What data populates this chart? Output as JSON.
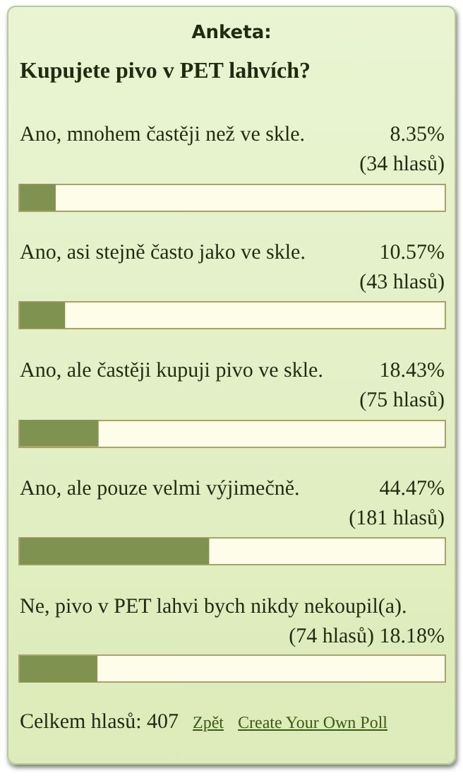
{
  "chart_data": {
    "type": "bar",
    "orientation": "horizontal",
    "title": "Anketa:",
    "subtitle": "Kupujete pivo v PET lahvích?",
    "categories": [
      "Ano, mnohem častěji než ve skle.",
      "Ano, asi stejně často jako ve skle.",
      "Ano, ale častěji kupuji pivo ve skle.",
      "Ano, ale pouze velmi výjimečně.",
      "Ne, pivo v PET lahvi bych nikdy nekoupil(a)."
    ],
    "values": [
      8.35,
      10.57,
      18.43,
      44.47,
      18.18
    ],
    "value_labels": [
      "8.35%\n(34 hlasů)",
      "10.57%\n(43 hlasů)",
      "18.43%\n(75 hlasů)",
      "44.47%\n(181 hlasů)",
      "(74 hlasů) 18.18%"
    ],
    "color": "#80924f",
    "xlim": [
      0,
      100
    ],
    "annotations": [
      "Celkem hlasů: 407",
      "Zpět",
      "Create Your Own Poll"
    ]
  }
}
